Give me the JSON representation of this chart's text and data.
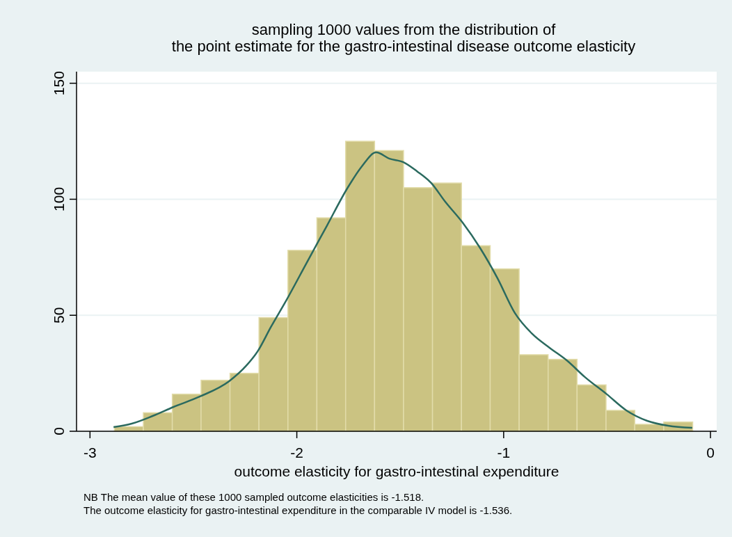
{
  "chart_data": {
    "type": "histogram",
    "title": "sampling 1000 values from the distribution of\nthe point estimate for the gastro-intestinal disease outcome elasticity",
    "xlabel": "outcome elasticity for gastro-intestinal expenditure",
    "annotations": [
      "NB The mean value of these 1000 sampled outcome elasticities is -1.518.",
      "The outcome elasticity for gastro-intestinal expenditure in the comparable IV model is -1.536."
    ],
    "bins": [
      -2.882,
      -2.742,
      -2.602,
      -2.463,
      -2.323,
      -2.183,
      -2.043,
      -1.903,
      -1.764,
      -1.624,
      -1.484,
      -1.344,
      -1.204,
      -1.065,
      -0.925,
      -0.785,
      -0.645,
      -0.505,
      -0.366,
      -0.226,
      -0.086
    ],
    "values": [
      2,
      8,
      16,
      22,
      25,
      49,
      78,
      92,
      125,
      121,
      105,
      107,
      80,
      70,
      33,
      31,
      20,
      9,
      3,
      4
    ],
    "color": "#cbc382",
    "series": [
      {
        "type": "line",
        "color": "#2b6a5f",
        "x": [
          -2.886,
          -2.798,
          -2.697,
          -2.596,
          -2.468,
          -2.327,
          -2.242,
          -2.189,
          -2.125,
          -2.051,
          -1.956,
          -1.855,
          -1.754,
          -1.687,
          -1.616,
          -1.552,
          -1.485,
          -1.418,
          -1.35,
          -1.283,
          -1.199,
          -1.114,
          -1.03,
          -0.946,
          -0.862,
          -0.778,
          -0.694,
          -0.609,
          -0.502,
          -0.407,
          -0.306,
          -0.205,
          -0.088
        ],
        "values": [
          1.8,
          3.3,
          6.6,
          10.5,
          15,
          21.6,
          28.5,
          34.5,
          45,
          56.4,
          72,
          88.5,
          105,
          114,
          120.2,
          117.5,
          116,
          112,
          107,
          99,
          90,
          79,
          66,
          51,
          42,
          36,
          30.5,
          23.5,
          16,
          9,
          4.5,
          2.4,
          1.5
        ]
      }
    ],
    "xlim": [
      -3.065,
      0.03
    ],
    "xticks": [
      -3,
      -2,
      -1,
      0
    ],
    "ylim": [
      0,
      155
    ],
    "yticks": [
      0,
      50,
      100,
      150
    ],
    "grid": "y"
  }
}
